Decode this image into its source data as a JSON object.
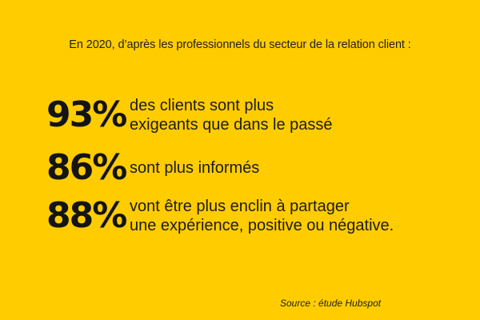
{
  "intro": "En 2020, d’après les professionnels du secteur de la relation client :",
  "stats": [
    {
      "value": "93%",
      "description": "des clients sont plus\nexigeants que dans le passé"
    },
    {
      "value": "86%",
      "description": "sont plus informés"
    },
    {
      "value": "88%",
      "description": "vont être plus enclin à partager\nune expérience, positive ou négative."
    }
  ],
  "source": "Source : étude Hubspot",
  "colors": {
    "background": "#ffcc00",
    "text": "#1a1a1a"
  }
}
